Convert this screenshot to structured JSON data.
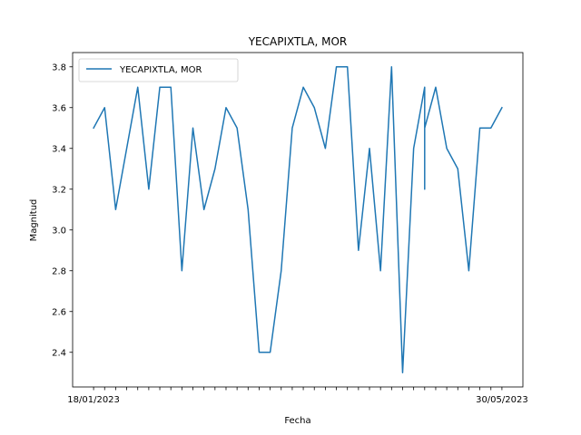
{
  "chart_data": {
    "type": "line",
    "title": "YECAPIXTLA, MOR",
    "xlabel": "Fecha",
    "ylabel": "Magnitud",
    "x_tick_labels": [
      "18/01/2023",
      "",
      "",
      "",
      "",
      "",
      "",
      "",
      "",
      "",
      "",
      "",
      "",
      "",
      "",
      "",
      "",
      "",
      "",
      "",
      "",
      "",
      "",
      "",
      "",
      "",
      "",
      "",
      "",
      "",
      "",
      "",
      "",
      "",
      "",
      "",
      "",
      "30/05/2023"
    ],
    "y_ticks": [
      2.4,
      2.6,
      2.8,
      3.0,
      3.2,
      3.4,
      3.6,
      3.8
    ],
    "ylim": [
      2.23,
      3.87
    ],
    "legend_position": "upper-left",
    "grid": false,
    "series": [
      {
        "name": "YECAPIXTLA, MOR",
        "color": "#1f77b4",
        "points": [
          [
            0,
            3.5
          ],
          [
            1,
            3.6
          ],
          [
            2,
            3.1
          ],
          [
            3,
            3.4
          ],
          [
            4,
            3.7
          ],
          [
            5,
            3.2
          ],
          [
            6,
            3.7
          ],
          [
            7,
            3.7
          ],
          [
            8,
            2.8
          ],
          [
            9,
            3.5
          ],
          [
            10,
            3.1
          ],
          [
            11,
            3.3
          ],
          [
            12,
            3.6
          ],
          [
            13,
            3.5
          ],
          [
            14,
            3.1
          ],
          [
            15,
            2.4
          ],
          [
            16,
            2.4
          ],
          [
            17,
            2.8
          ],
          [
            18,
            3.5
          ],
          [
            19,
            3.7
          ],
          [
            20,
            3.6
          ],
          [
            21,
            3.4
          ],
          [
            22,
            3.8
          ],
          [
            23,
            3.8
          ],
          [
            24,
            2.9
          ],
          [
            25,
            3.4
          ],
          [
            26,
            2.8
          ],
          [
            27,
            3.8
          ],
          [
            28,
            2.3
          ],
          [
            29,
            3.4
          ],
          [
            30,
            3.7
          ],
          [
            30,
            3.2
          ],
          [
            30,
            3.5
          ],
          [
            31,
            3.7
          ],
          [
            32,
            3.4
          ],
          [
            33,
            3.3
          ],
          [
            34,
            2.8
          ],
          [
            35,
            3.5
          ],
          [
            36,
            3.5
          ],
          [
            37,
            3.6
          ]
        ]
      }
    ]
  }
}
